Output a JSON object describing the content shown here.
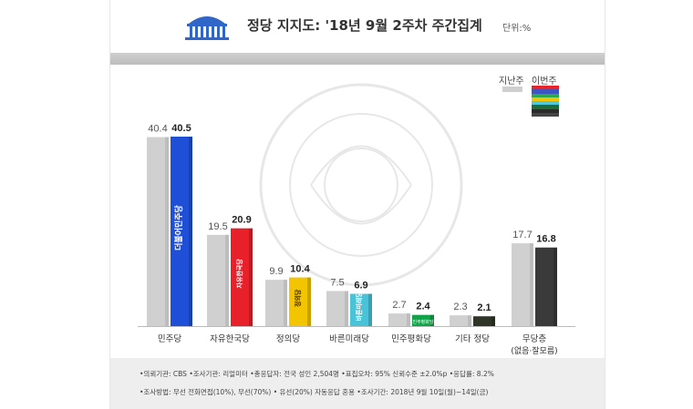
{
  "header": {
    "title": "정당 지지도: '18년 9월 2주차 주간집계",
    "unit": "단위:%"
  },
  "legend": {
    "prev_label": "지난주",
    "curr_label": "이번주",
    "curr_colors": [
      "#e8232a",
      "#3b55c2",
      "#2ea84e",
      "#f2c500",
      "#4fc8de",
      "#1f6b3a",
      "#2a2a2a",
      "#444444"
    ]
  },
  "colors": {
    "previous": "#d0d0d0",
    "previous_side": "#bdbdbd"
  },
  "chart_data": {
    "type": "bar",
    "categories": [
      "민주당",
      "자유한국당",
      "정의당",
      "바른미래당",
      "민주평화당",
      "기타 정당",
      "무당층"
    ],
    "category_note": {
      "무당층": "(없음·잘모름)"
    },
    "series": [
      {
        "name": "지난주",
        "values": [
          40.4,
          19.5,
          9.9,
          7.5,
          2.7,
          2.3,
          17.7
        ]
      },
      {
        "name": "이번주",
        "values": [
          40.5,
          20.9,
          10.4,
          6.9,
          2.4,
          2.1,
          16.8
        ]
      }
    ],
    "current_colors": [
      "#1f4fd6",
      "#e8202a",
      "#f2c500",
      "#48c3d8",
      "#12a24a",
      "#2f3528",
      "#3a3a3a"
    ],
    "bar_logos": [
      "더불어민주당",
      "자유한국당",
      "정의당",
      "바른미래당",
      "민주평화당",
      "",
      ""
    ],
    "ylim": [
      0,
      42
    ],
    "ylabel": "",
    "xlabel": ""
  },
  "footer": {
    "line1": "•의뢰기관: CBS  •조사기관: 리얼미터  •총응답자: 전국 성인 2,504명  •표집오차: 95% 신뢰수준 ±2.0%p  •응답률: 8.2%",
    "line2": "•조사방법: 무선 전화면접(10%), 무선(70%) • 유선(20%) 자동응답 혼용  •조사기간: 2018년 9월 10일(월)~14일(금)"
  }
}
